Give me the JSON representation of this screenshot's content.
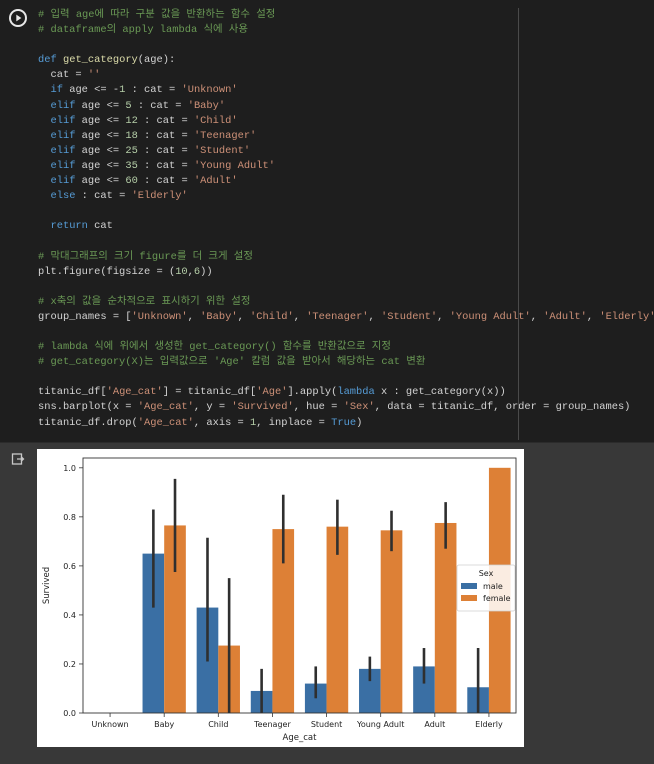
{
  "cell": {
    "code_lines": [
      [
        [
          "cm",
          "# 입력 age에 따라 구분 값을 반환하는 함수 설정"
        ]
      ],
      [
        [
          "cm",
          "# dataframe의 apply lambda 식에 사용"
        ]
      ],
      [],
      [
        [
          "kw",
          "def"
        ],
        [
          "",
          " "
        ],
        [
          "fn",
          "get_category"
        ],
        [
          "",
          "(age):"
        ]
      ],
      [
        [
          "",
          "  cat = "
        ],
        [
          "str",
          "''"
        ]
      ],
      [
        [
          "",
          "  "
        ],
        [
          "kw",
          "if"
        ],
        [
          "",
          " age <= -"
        ],
        [
          "num",
          "1"
        ],
        [
          "",
          " : cat = "
        ],
        [
          "str",
          "'Unknown'"
        ]
      ],
      [
        [
          "",
          "  "
        ],
        [
          "kw",
          "elif"
        ],
        [
          "",
          " age <= "
        ],
        [
          "num",
          "5"
        ],
        [
          "",
          " : cat = "
        ],
        [
          "str",
          "'Baby'"
        ]
      ],
      [
        [
          "",
          "  "
        ],
        [
          "kw",
          "elif"
        ],
        [
          "",
          " age <= "
        ],
        [
          "num",
          "12"
        ],
        [
          "",
          " : cat = "
        ],
        [
          "str",
          "'Child'"
        ]
      ],
      [
        [
          "",
          "  "
        ],
        [
          "kw",
          "elif"
        ],
        [
          "",
          " age <= "
        ],
        [
          "num",
          "18"
        ],
        [
          "",
          " : cat = "
        ],
        [
          "str",
          "'Teenager'"
        ]
      ],
      [
        [
          "",
          "  "
        ],
        [
          "kw",
          "elif"
        ],
        [
          "",
          " age <= "
        ],
        [
          "num",
          "25"
        ],
        [
          "",
          " : cat = "
        ],
        [
          "str",
          "'Student'"
        ]
      ],
      [
        [
          "",
          "  "
        ],
        [
          "kw",
          "elif"
        ],
        [
          "",
          " age <= "
        ],
        [
          "num",
          "35"
        ],
        [
          "",
          " : cat = "
        ],
        [
          "str",
          "'Young Adult'"
        ]
      ],
      [
        [
          "",
          "  "
        ],
        [
          "kw",
          "elif"
        ],
        [
          "",
          " age <= "
        ],
        [
          "num",
          "60"
        ],
        [
          "",
          " : cat = "
        ],
        [
          "str",
          "'Adult'"
        ]
      ],
      [
        [
          "",
          "  "
        ],
        [
          "kw",
          "else"
        ],
        [
          "",
          " : cat = "
        ],
        [
          "str",
          "'Elderly'"
        ]
      ],
      [],
      [
        [
          "",
          "  "
        ],
        [
          "kw",
          "return"
        ],
        [
          "",
          " cat"
        ]
      ],
      [],
      [
        [
          "cm",
          "# 막대그래프의 크기 figure를 더 크게 설정"
        ]
      ],
      [
        [
          "",
          "plt.figure(figsize = ("
        ],
        [
          "num",
          "10"
        ],
        [
          "",
          ","
        ],
        [
          "num",
          "6"
        ],
        [
          "",
          "))"
        ]
      ],
      [],
      [
        [
          "cm",
          "# x축의 값을 순차적으로 표시하기 위한 설정"
        ]
      ],
      [
        [
          "",
          "group_names = ["
        ],
        [
          "str",
          "'Unknown'"
        ],
        [
          "",
          ", "
        ],
        [
          "str",
          "'Baby'"
        ],
        [
          "",
          ", "
        ],
        [
          "str",
          "'Child'"
        ],
        [
          "",
          ", "
        ],
        [
          "str",
          "'Teenager'"
        ],
        [
          "",
          ", "
        ],
        [
          "str",
          "'Student'"
        ],
        [
          "",
          ", "
        ],
        [
          "str",
          "'Young Adult'"
        ],
        [
          "",
          ", "
        ],
        [
          "str",
          "'Adult'"
        ],
        [
          "",
          ", "
        ],
        [
          "str",
          "'Elderly'"
        ],
        [
          "",
          "]"
        ]
      ],
      [],
      [
        [
          "cm",
          "# lambda 식에 위에서 생성한 get_category() 함수를 반환값으로 지정"
        ]
      ],
      [
        [
          "cm",
          "# get_category(X)는 입력값으로 'Age' 칼럼 값을 받아서 해당하는 cat 변환"
        ]
      ],
      [],
      [
        [
          "",
          "titanic_df["
        ],
        [
          "str",
          "'Age_cat'"
        ],
        [
          "",
          "] = titanic_df["
        ],
        [
          "str",
          "'Age'"
        ],
        [
          "",
          "].apply("
        ],
        [
          "kw",
          "lambda"
        ],
        [
          "",
          " x : get_category(x))"
        ]
      ],
      [
        [
          "",
          "sns.barplot(x = "
        ],
        [
          "str",
          "'Age_cat'"
        ],
        [
          "",
          ", y = "
        ],
        [
          "str",
          "'Survived'"
        ],
        [
          "",
          ", hue = "
        ],
        [
          "str",
          "'Sex'"
        ],
        [
          "",
          ", data = titanic_df, order = group_names)"
        ]
      ],
      [
        [
          "",
          "titanic_df.drop("
        ],
        [
          "str",
          "'Age_cat'"
        ],
        [
          "",
          ", axis = "
        ],
        [
          "num",
          "1"
        ],
        [
          "",
          ", inplace = "
        ],
        [
          "kw",
          "True"
        ],
        [
          "",
          ")"
        ]
      ]
    ]
  },
  "colors": {
    "male": "#3a6fa4",
    "female": "#dd8036",
    "errbar": "#2f2f2f"
  },
  "chart_data": {
    "type": "bar",
    "title": "",
    "xlabel": "Age_cat",
    "ylabel": "Survived",
    "categories": [
      "Unknown",
      "Baby",
      "Child",
      "Teenager",
      "Student",
      "Young Adult",
      "Adult",
      "Elderly"
    ],
    "ylim": [
      0,
      1.04
    ],
    "yticks": [
      "0.0",
      "0.2",
      "0.4",
      "0.6",
      "0.8",
      "1.0"
    ],
    "legend": {
      "title": "Sex",
      "position": "center-right"
    },
    "series": [
      {
        "name": "male",
        "values": [
          null,
          0.65,
          0.43,
          0.09,
          0.12,
          0.18,
          0.19,
          0.105
        ],
        "ci_low": [
          null,
          0.43,
          0.21,
          0.0,
          0.06,
          0.13,
          0.12,
          0.0
        ],
        "ci_high": [
          null,
          0.83,
          0.715,
          0.18,
          0.19,
          0.23,
          0.265,
          0.265
        ]
      },
      {
        "name": "female",
        "values": [
          null,
          0.765,
          0.275,
          0.75,
          0.76,
          0.745,
          0.775,
          1.0
        ],
        "ci_low": [
          null,
          0.575,
          0.0,
          0.61,
          0.645,
          0.66,
          0.67,
          1.0
        ],
        "ci_high": [
          null,
          0.955,
          0.55,
          0.89,
          0.87,
          0.825,
          0.86,
          1.0
        ]
      }
    ]
  }
}
